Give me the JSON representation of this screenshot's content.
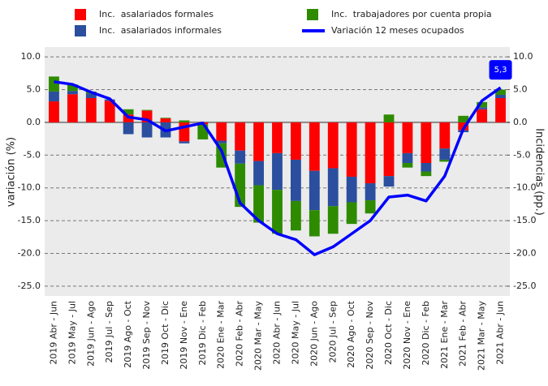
{
  "chart_data": {
    "type": "bar",
    "stacked": true,
    "ylabel": "variación (%)",
    "y2label": "Incidencias (pp.)",
    "categories": [
      "2019 Abr - Jun",
      "2019 May - Jul",
      "2019 Jun - Ago",
      "2019 Jul - Sep",
      "2019 Ago - Oct",
      "2019 Sep - Nov",
      "2019 Oct - Dic",
      "2019 Nov - Ene",
      "2019 Dic - Feb",
      "2020 Ene - Mar",
      "2020 Feb - Abr",
      "2020 Mar - May",
      "2020 Abr - Jun",
      "2020 May - Jul",
      "2020 Jun - Ago",
      "2020 Jul - Sep",
      "2020 Ago - Oct",
      "2020 Sep - Nov",
      "2020 Oct - Dic",
      "2020 Nov - Ene",
      "2020 Dic - Feb",
      "2021 Ene - Mar",
      "2021 Feb - Abr",
      "2021 Mar - May",
      "2021 Abr - Jun"
    ],
    "series": [
      {
        "name": "Inc.  asalariados formales",
        "type": "bar",
        "axis": "y2",
        "color": "#ff0000",
        "values": [
          3.2,
          4.3,
          3.7,
          3.3,
          1.2,
          1.8,
          0.6,
          -2.9,
          -0.3,
          -2.8,
          -4.3,
          -5.9,
          -4.7,
          -5.7,
          -7.4,
          -7.0,
          -8.3,
          -9.3,
          -8.2,
          -4.7,
          -6.2,
          -4.0,
          -1.2,
          2.0,
          3.7
        ]
      },
      {
        "name": "Inc.  asalariados informales",
        "type": "bar",
        "axis": "y2",
        "color": "#2b4f9e",
        "values": [
          1.5,
          0.5,
          0.7,
          0.2,
          -1.8,
          -2.3,
          -2.3,
          -0.3,
          0.0,
          -0.4,
          -2.0,
          -3.7,
          -5.6,
          -6.3,
          -6.0,
          -5.8,
          -3.9,
          -2.6,
          -1.6,
          -1.5,
          -1.3,
          -1.7,
          -0.3,
          0.3,
          0.5
        ]
      },
      {
        "name": "Inc.  trabajadores por cuenta propia",
        "type": "bar",
        "axis": "y2",
        "color": "#2e8b00",
        "values": [
          2.3,
          1.0,
          0.3,
          0.0,
          0.8,
          0.1,
          0.1,
          0.3,
          -2.3,
          -3.7,
          -6.6,
          -5.7,
          -6.7,
          -4.5,
          -4.0,
          -4.2,
          -3.3,
          -2.0,
          1.2,
          -0.7,
          -0.7,
          -0.3,
          1.0,
          0.8,
          0.8
        ]
      },
      {
        "name": "Variación 12 meses ocupados",
        "type": "line",
        "color": "#0000ff",
        "values": [
          6.2,
          5.8,
          4.6,
          3.6,
          0.8,
          0.4,
          -1.3,
          -0.7,
          -0.1,
          -4.3,
          -12.3,
          -15.0,
          -17.0,
          -17.9,
          -20.2,
          -19.0,
          -17.0,
          -15.0,
          -11.4,
          -11.1,
          -12.0,
          -8.2,
          -1.0,
          3.3,
          5.3
        ]
      }
    ],
    "annotation": {
      "text": "5,3",
      "color": "#0000ff"
    },
    "ylim": [
      -26.5,
      11.5
    ],
    "y2lim": [
      -26.5,
      11.5
    ],
    "yticks": [
      {
        "value": 10,
        "label": "10.0"
      },
      {
        "value": 5,
        "label": "5.0"
      },
      {
        "value": 0,
        "label": "0.0"
      },
      {
        "value": -5,
        "label": "-5.0"
      },
      {
        "value": -10,
        "label": "-10.0"
      },
      {
        "value": -15,
        "label": "-15.0"
      },
      {
        "value": -20,
        "label": "-20.0"
      },
      {
        "value": -25,
        "label": "-25.0"
      }
    ],
    "y2ticks": [
      {
        "value": 10,
        "label": "10.0"
      },
      {
        "value": 5,
        "label": "5.0"
      },
      {
        "value": 0,
        "label": "0.0"
      },
      {
        "value": -5,
        "label": "-5.0"
      },
      {
        "value": -10,
        "label": "-10.0"
      },
      {
        "value": -15,
        "label": "-15.0"
      },
      {
        "value": -20,
        "label": "-20.0"
      },
      {
        "value": -25,
        "label": "-25.0"
      }
    ],
    "grid": true
  }
}
